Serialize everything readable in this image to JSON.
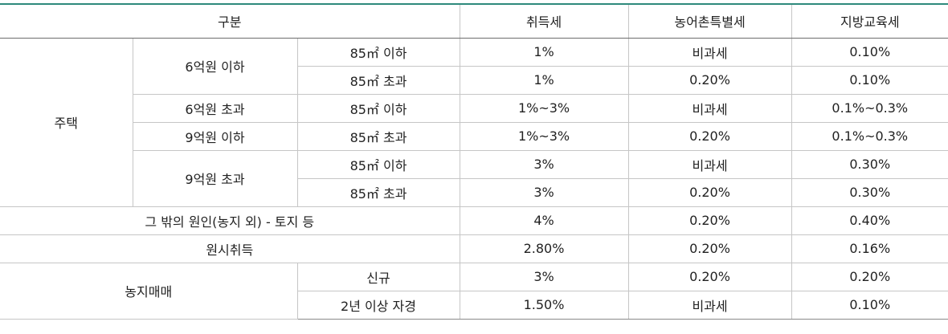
{
  "header": {
    "category": "구분",
    "acquisition_tax": "취득세",
    "rural_special_tax": "농어촌특별세",
    "local_education_tax": "지방교육세"
  },
  "housing": {
    "label": "주택",
    "rows": [
      {
        "price": "6억원 이하",
        "size": "85㎡ 이하",
        "acquisition": "1%",
        "rural": "비과세",
        "education": "0.10%"
      },
      {
        "size": "85㎡ 초과",
        "acquisition": "1%",
        "rural": "0.20%",
        "education": "0.10%"
      },
      {
        "price": "6억원 초과",
        "size": "85㎡ 이하",
        "acquisition": "1%~3%",
        "rural": "비과세",
        "education": "0.1%~0.3%"
      },
      {
        "price": "9억원 이하",
        "size": "85㎡ 초과",
        "acquisition": "1%~3%",
        "rural": "0.20%",
        "education": "0.1%~0.3%"
      },
      {
        "price": "9억원 초과",
        "size": "85㎡ 이하",
        "acquisition": "3%",
        "rural": "비과세",
        "education": "0.30%"
      },
      {
        "size": "85㎡ 초과",
        "acquisition": "3%",
        "rural": "0.20%",
        "education": "0.30%"
      }
    ]
  },
  "other_causes": {
    "label": "그 밖의 원인(농지 외) - 토지 등",
    "acquisition": "4%",
    "rural": "0.20%",
    "education": "0.40%"
  },
  "original_acquisition": {
    "label": "원시취득",
    "acquisition": "2.80%",
    "rural": "0.20%",
    "education": "0.16%"
  },
  "farmland": {
    "label": "농지매매",
    "rows": [
      {
        "type": "신규",
        "acquisition": "3%",
        "rural": "0.20%",
        "education": "0.20%"
      },
      {
        "type": "2년 이상 자경",
        "acquisition": "1.50%",
        "rural": "비과세",
        "education": "0.10%"
      }
    ]
  },
  "colors": {
    "accent_top_border": "#2e8a7c",
    "grid_line": "#c6c6c6"
  }
}
